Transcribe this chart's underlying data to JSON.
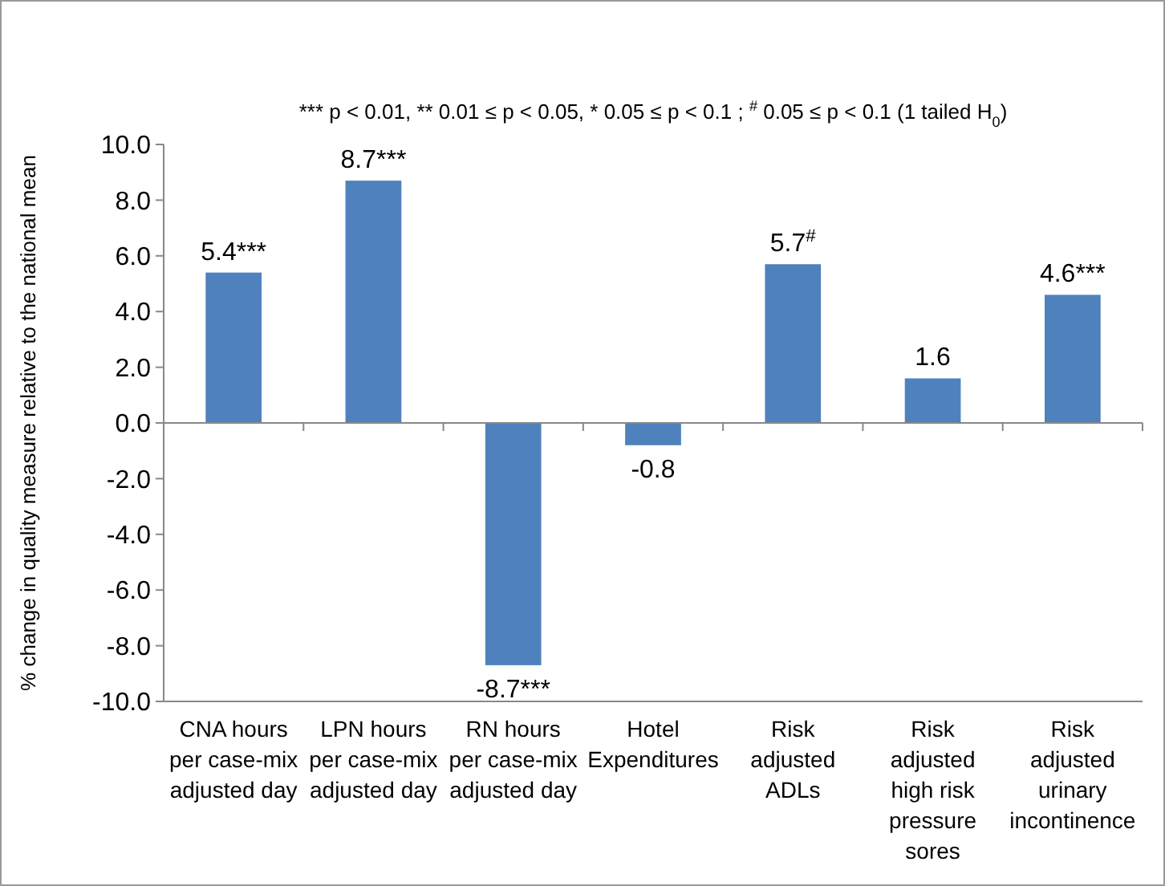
{
  "chart_data": {
    "type": "bar",
    "ylabel": "% change in quality measure relative to the national mean",
    "annotations": [
      "*** p < 0.01, ** 0.01 ≤ p < 0.05, * 0.05 ≤  p < 0.1 ; $^{#}$ 0.05 ≤  p < 0.1 (1 tailed H$_{0}$)"
    ],
    "categories": [
      "CNA hours\nper case-mix\nadjusted day",
      "LPN hours\nper case-mix\nadjusted day",
      "RN  hours\nper case-mix\nadjusted day",
      "Hotel\nExpenditures",
      "Risk\nadjusted\nADLs",
      "Risk\nadjusted\nhigh risk\npressure\nsores",
      "Risk\nadjusted\nurinary\nincontinence"
    ],
    "values": [
      5.4,
      8.7,
      -8.7,
      -0.8,
      5.7,
      1.6,
      4.6
    ],
    "value_labels": [
      "5.4***",
      "8.7***",
      "-8.7***",
      "-0.8",
      "5.7$^{#}$",
      "1.6",
      "4.6***"
    ],
    "color": "#4f81bd",
    "ylim": [
      -10,
      10
    ],
    "yticks": [
      {
        "value": -10,
        "label": "-10.0"
      },
      {
        "value": -8,
        "label": "-8.0"
      },
      {
        "value": -6,
        "label": "-6.0"
      },
      {
        "value": -4,
        "label": "-4.0"
      },
      {
        "value": -2,
        "label": "-2.0"
      },
      {
        "value": 0,
        "label": "0.0"
      },
      {
        "value": 2,
        "label": "2.0"
      },
      {
        "value": 4,
        "label": "4.0"
      },
      {
        "value": 6,
        "label": "6.0"
      },
      {
        "value": 8,
        "label": "8.0"
      },
      {
        "value": 10,
        "label": "10.0"
      }
    ],
    "legend": false
  }
}
